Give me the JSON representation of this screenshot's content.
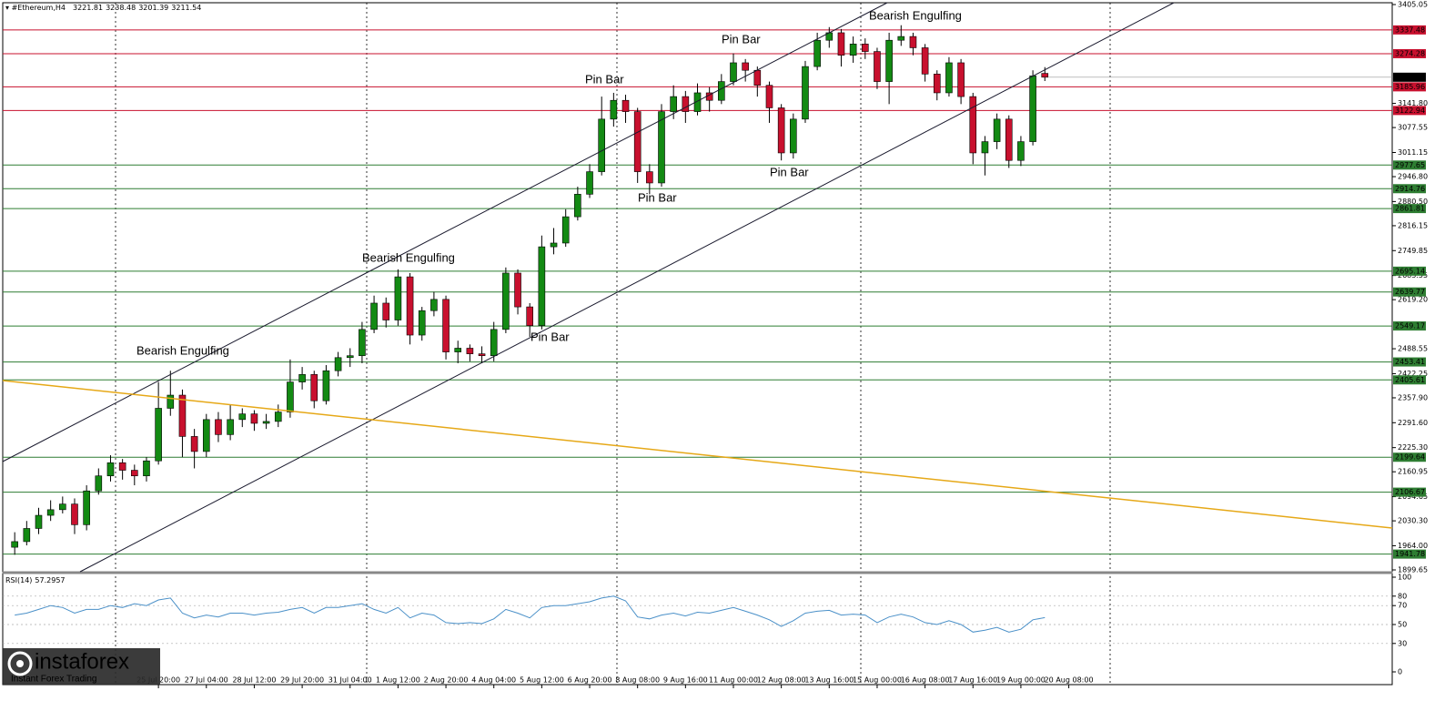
{
  "chart_data": [
    {
      "type": "candlestick",
      "title": "#Ethereum,H4",
      "open": [
        1960,
        1975,
        2010,
        2045,
        2060,
        2075,
        2020,
        2110,
        2150,
        2185,
        2165,
        2150,
        2190,
        2330,
        2365,
        2255,
        2215,
        2300,
        2260,
        2300,
        2315,
        2290,
        2295,
        2320,
        2400,
        2420,
        2350,
        2430,
        2465,
        2470,
        2540,
        2610,
        2565,
        2680,
        2525,
        2590,
        2620,
        2480,
        2490,
        2475,
        2470,
        2540,
        2690,
        2600,
        2550,
        2760,
        2770,
        2840,
        2900,
        2960,
        3100,
        3150,
        3120,
        2960,
        2930,
        3120,
        3160,
        3120,
        3170,
        3150,
        3200,
        3250,
        3230,
        3190,
        3130,
        3010,
        3100,
        3240,
        3310,
        3330,
        3270,
        3300,
        3280,
        3200,
        3310,
        3320,
        3290,
        3220,
        3170,
        3250,
        3160,
        3010,
        3040,
        3100,
        2990,
        3040,
        3221.81
      ],
      "high": [
        2000,
        2030,
        2065,
        2085,
        2095,
        2090,
        2125,
        2170,
        2205,
        2195,
        2180,
        2200,
        2400,
        2430,
        2380,
        2275,
        2315,
        2320,
        2340,
        2330,
        2325,
        2315,
        2340,
        2460,
        2440,
        2430,
        2445,
        2480,
        2490,
        2560,
        2630,
        2625,
        2700,
        2690,
        2600,
        2640,
        2630,
        2510,
        2500,
        2495,
        2560,
        2705,
        2700,
        2610,
        2790,
        2810,
        2860,
        2920,
        2980,
        3160,
        3170,
        3165,
        3130,
        2980,
        3140,
        3190,
        3175,
        3195,
        3185,
        3220,
        3275,
        3260,
        3240,
        3200,
        3140,
        3115,
        3255,
        3330,
        3345,
        3340,
        3320,
        3315,
        3290,
        3330,
        3350,
        3330,
        3300,
        3230,
        3265,
        3260,
        3170,
        3055,
        3115,
        3110,
        3055,
        3230,
        3238.48
      ],
      "low": [
        1940,
        1965,
        1995,
        2030,
        2050,
        1995,
        2005,
        2100,
        2135,
        2140,
        2125,
        2135,
        2180,
        2310,
        2200,
        2170,
        2200,
        2240,
        2245,
        2280,
        2270,
        2275,
        2280,
        2305,
        2380,
        2330,
        2340,
        2415,
        2440,
        2450,
        2530,
        2545,
        2550,
        2500,
        2510,
        2575,
        2460,
        2450,
        2455,
        2450,
        2455,
        2530,
        2580,
        2520,
        2540,
        2740,
        2760,
        2830,
        2890,
        2950,
        3080,
        3090,
        2930,
        2900,
        2920,
        3100,
        3090,
        3110,
        3120,
        3140,
        3190,
        3200,
        3160,
        3090,
        2990,
        2995,
        3090,
        3230,
        3290,
        3240,
        3250,
        3260,
        3180,
        3140,
        3295,
        3270,
        3200,
        3150,
        3160,
        3140,
        2980,
        2950,
        3020,
        2970,
        2975,
        3030,
        3201.39
      ],
      "close": [
        1975,
        2010,
        2045,
        2060,
        2075,
        2020,
        2110,
        2150,
        2185,
        2165,
        2150,
        2190,
        2330,
        2365,
        2255,
        2215,
        2300,
        2260,
        2300,
        2315,
        2290,
        2295,
        2320,
        2400,
        2420,
        2350,
        2430,
        2465,
        2470,
        2540,
        2610,
        2565,
        2680,
        2525,
        2590,
        2620,
        2480,
        2490,
        2475,
        2470,
        2540,
        2690,
        2600,
        2550,
        2760,
        2770,
        2840,
        2900,
        2960,
        3100,
        3150,
        3120,
        2960,
        2930,
        3120,
        3160,
        3120,
        3170,
        3150,
        3200,
        3250,
        3230,
        3190,
        3130,
        3010,
        3100,
        3240,
        3310,
        3330,
        3270,
        3300,
        3280,
        3200,
        3310,
        3320,
        3290,
        3220,
        3170,
        3250,
        3160,
        3010,
        3040,
        3100,
        2990,
        3040,
        3215,
        3211.54
      ],
      "up_color": "#138a13",
      "down_color": "#c8102e",
      "xlim": [
        -1,
        115
      ],
      "ylim": [
        1899.65,
        3405.05
      ],
      "yticks": [
        3405.05,
        {
          "value": 3141.8,
          "label": "3141.80"
        },
        3077.55,
        3011.15,
        {
          "value": 2946.8,
          "label": "2946.80"
        },
        {
          "value": 2880.5,
          "label": "2880.50"
        },
        2816.15,
        2749.85,
        2683.55,
        {
          "value": 2619.2,
          "label": "2619.20"
        },
        2488.55,
        2422.25,
        {
          "value": 2357.9,
          "label": "2357.90"
        },
        {
          "value": 2291.6,
          "label": "2291.60"
        },
        {
          "value": 2225.3,
          "label": "2225.30"
        },
        2160.95,
        2094.65,
        {
          "value": 2030.3,
          "label": "2030.30"
        },
        {
          "value": 1964,
          "label": "1964.00"
        },
        1899.65
      ],
      "xticks": [
        {
          "value": 12,
          "label": "25 Jul 20:00"
        },
        {
          "value": 16,
          "label": "27 Jul 04:00"
        },
        {
          "value": 20,
          "label": "28 Jul 12:00"
        },
        {
          "value": 24,
          "label": "29 Jul 20:00"
        },
        {
          "value": 28,
          "label": "31 Jul 04:00"
        },
        {
          "value": 32,
          "label": "1 Aug 12:00"
        },
        {
          "value": 36,
          "label": "2 Aug 20:00"
        },
        {
          "value": 40,
          "label": "4 Aug 04:00"
        },
        {
          "value": 44,
          "label": "5 Aug 12:00"
        },
        {
          "value": 48,
          "label": "6 Aug 20:00"
        },
        {
          "value": 52,
          "label": "8 Aug 08:00"
        },
        {
          "value": 56,
          "label": "9 Aug 16:00"
        },
        {
          "value": 60,
          "label": "11 Aug 00:00"
        },
        {
          "value": 64,
          "label": "12 Aug 08:00"
        },
        {
          "value": 68,
          "label": "13 Aug 16:00"
        },
        {
          "value": 72,
          "label": "15 Aug 00:00"
        },
        {
          "value": 76,
          "label": "16 Aug 08:00"
        },
        {
          "value": 80,
          "label": "17 Aug 16:00"
        },
        {
          "value": 84,
          "label": "19 Aug 00:00"
        },
        {
          "value": 88,
          "label": "20 Aug 08:00"
        }
      ],
      "levels": [
        {
          "value": 3337.48,
          "color": "#c8102e"
        },
        {
          "value": 3274.28,
          "color": "#c8102e"
        },
        {
          "value": 3185.96,
          "color": "#c8102e"
        },
        {
          "value": 3122.94,
          "color": "#c8102e"
        },
        {
          "value": 2977.65,
          "color": "#2e7d32"
        },
        {
          "value": 2914.76,
          "color": "#2e7d32"
        },
        {
          "value": 2861.81,
          "color": "#2e7d32"
        },
        {
          "value": 2695.14,
          "color": "#2e7d32"
        },
        {
          "value": 2639.77,
          "color": "#2e7d32"
        },
        {
          "value": 2549.17,
          "color": "#2e7d32"
        },
        {
          "value": 2453.41,
          "color": "#2e7d32"
        },
        {
          "value": 2405.61,
          "color": "#2e7d32"
        },
        {
          "value": 2199.64,
          "color": "#2e7d32"
        },
        {
          "value": 2106.67,
          "color": "#2e7d32"
        },
        {
          "value": 1941.78,
          "color": "#2e7d32"
        }
      ],
      "annotations": [
        "Bearish Engulfing",
        "Bearish Engulfing",
        "Bearish Engulfing",
        "Pin Bar",
        "Pin Bar",
        "Pin Bar",
        "Pin Bar",
        "Pin Bar"
      ],
      "brand": "instaforex",
      "brand_tagline": "Instant Forex Trading"
    },
    {
      "type": "line",
      "title": "RSI(14)",
      "color": "#4a90c8",
      "values": [
        60,
        62,
        66,
        70,
        68,
        62,
        66,
        66,
        70,
        68,
        72,
        70,
        76,
        78,
        62,
        57,
        60,
        58,
        62,
        62,
        60,
        62,
        63,
        66,
        68,
        62,
        68,
        68,
        70,
        72,
        66,
        62,
        68,
        57,
        62,
        60,
        52,
        51,
        52,
        51,
        56,
        66,
        62,
        57,
        68,
        70,
        70,
        72,
        74,
        78,
        80,
        75,
        58,
        56,
        60,
        62,
        59,
        63,
        62,
        65,
        68,
        64,
        60,
        55,
        48,
        54,
        62,
        64,
        65,
        60,
        61,
        60,
        52,
        58,
        61,
        58,
        52,
        50,
        54,
        50,
        42,
        44,
        47,
        42,
        45,
        55,
        57.2957
      ],
      "xlim": [
        -1,
        115
      ],
      "ylim": [
        0,
        100
      ],
      "yticks": [
        0,
        30,
        50,
        70,
        80,
        100
      ]
    }
  ]
}
